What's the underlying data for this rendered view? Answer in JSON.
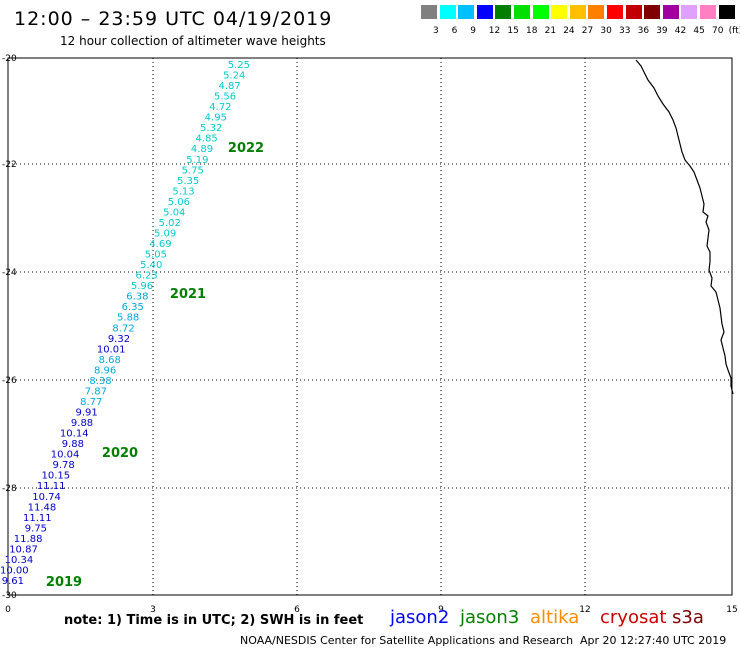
{
  "title": "12:00 – 23:59 UTC 04/19/2019",
  "subtitle": "12 hour collection of altimeter wave heights",
  "scale": {
    "unit": "(ft)",
    "colors": [
      "#808080",
      "#00ffff",
      "#00bfff",
      "#0000ff",
      "#007f00",
      "#00df00",
      "#00ff00",
      "#ffff00",
      "#ffc000",
      "#ff8000",
      "#ff0000",
      "#c00000",
      "#800000",
      "#a000a0",
      "#e0a0ff",
      "#ff80c0",
      "#000000"
    ],
    "labels": [
      "3",
      "6",
      "9",
      "12",
      "15",
      "18",
      "21",
      "24",
      "27",
      "30",
      "33",
      "36",
      "39",
      "42",
      "45",
      "70"
    ]
  },
  "axes": {
    "x_ticks": [
      "0",
      "3",
      "6",
      "9",
      "12",
      "15"
    ],
    "y_ticks": [
      "-20",
      "-22",
      "-24",
      "-26",
      "-28",
      "-30"
    ]
  },
  "track": [
    {
      "v": "5.25",
      "c": "#00cccc"
    },
    {
      "v": "5.24",
      "c": "#00cccc"
    },
    {
      "v": "4.87",
      "c": "#00cccc"
    },
    {
      "v": "5.56",
      "c": "#00cccc"
    },
    {
      "v": "4.72",
      "c": "#00cccc"
    },
    {
      "v": "4.95",
      "c": "#00cccc"
    },
    {
      "v": "5.32",
      "c": "#00cccc"
    },
    {
      "v": "4.85",
      "c": "#00cccc"
    },
    {
      "v": "4.89",
      "c": "#00cccc"
    },
    {
      "v": "5.19",
      "c": "#00cccc"
    },
    {
      "v": "5.75",
      "c": "#00cccc"
    },
    {
      "v": "5.35",
      "c": "#00cccc"
    },
    {
      "v": "5.13",
      "c": "#00cccc"
    },
    {
      "v": "5.06",
      "c": "#00cccc"
    },
    {
      "v": "5.04",
      "c": "#00cccc"
    },
    {
      "v": "5.02",
      "c": "#00cccc"
    },
    {
      "v": "5.09",
      "c": "#00cccc"
    },
    {
      "v": "4.69",
      "c": "#00cccc"
    },
    {
      "v": "5.05",
      "c": "#00cccc"
    },
    {
      "v": "5.40",
      "c": "#00cccc"
    },
    {
      "v": "6.23",
      "c": "#00cccc"
    },
    {
      "v": "5.96",
      "c": "#00cccc"
    },
    {
      "v": "6.38",
      "c": "#00aadd"
    },
    {
      "v": "6.35",
      "c": "#00aadd"
    },
    {
      "v": "5.88",
      "c": "#00aadd"
    },
    {
      "v": "8.72",
      "c": "#00aadd"
    },
    {
      "v": "9.32",
      "c": "#0000cc"
    },
    {
      "v": "10.01",
      "c": "#0000cc"
    },
    {
      "v": "8.68",
      "c": "#00aadd"
    },
    {
      "v": "8.96",
      "c": "#00aadd"
    },
    {
      "v": "8.38",
      "c": "#00aadd"
    },
    {
      "v": "7.87",
      "c": "#00aadd"
    },
    {
      "v": "8.77",
      "c": "#00aadd"
    },
    {
      "v": "9.91",
      "c": "#0000cc"
    },
    {
      "v": "9.88",
      "c": "#0000cc"
    },
    {
      "v": "10.14",
      "c": "#0000cc"
    },
    {
      "v": "9.88",
      "c": "#0000cc"
    },
    {
      "v": "10.04",
      "c": "#0000cc"
    },
    {
      "v": "9.78",
      "c": "#0000cc"
    },
    {
      "v": "10.15",
      "c": "#0000cc"
    },
    {
      "v": "11.11",
      "c": "#0000cc"
    },
    {
      "v": "10.74",
      "c": "#0000cc"
    },
    {
      "v": "11.48",
      "c": "#0000cc"
    },
    {
      "v": "11.11",
      "c": "#0000cc"
    },
    {
      "v": "9.75",
      "c": "#0000cc"
    },
    {
      "v": "11.88",
      "c": "#0000cc"
    },
    {
      "v": "10.87",
      "c": "#0000cc"
    },
    {
      "v": "10.34",
      "c": "#0000cc"
    },
    {
      "v": "10.00",
      "c": "#0000cc"
    },
    {
      "v": "9.61",
      "c": "#0000cc"
    }
  ],
  "years": [
    "2022",
    "2021",
    "2020",
    "2019"
  ],
  "note": "note:  1) Time is in UTC;  2) SWH is in feet",
  "satellites": [
    {
      "name": "jason2",
      "color": "#0000ff"
    },
    {
      "name": "jason3",
      "color": "#007f00"
    },
    {
      "name": "altika",
      "color": "#ff8c00"
    },
    {
      "name": "cryosat",
      "color": "#cc0000"
    },
    {
      "name": "s3a",
      "color": "#800000"
    }
  ],
  "credit": "NOAA/NESDIS Center for Satellite Applications and Research",
  "timestamp": "Apr 20 12:27:40 UTC 2019"
}
